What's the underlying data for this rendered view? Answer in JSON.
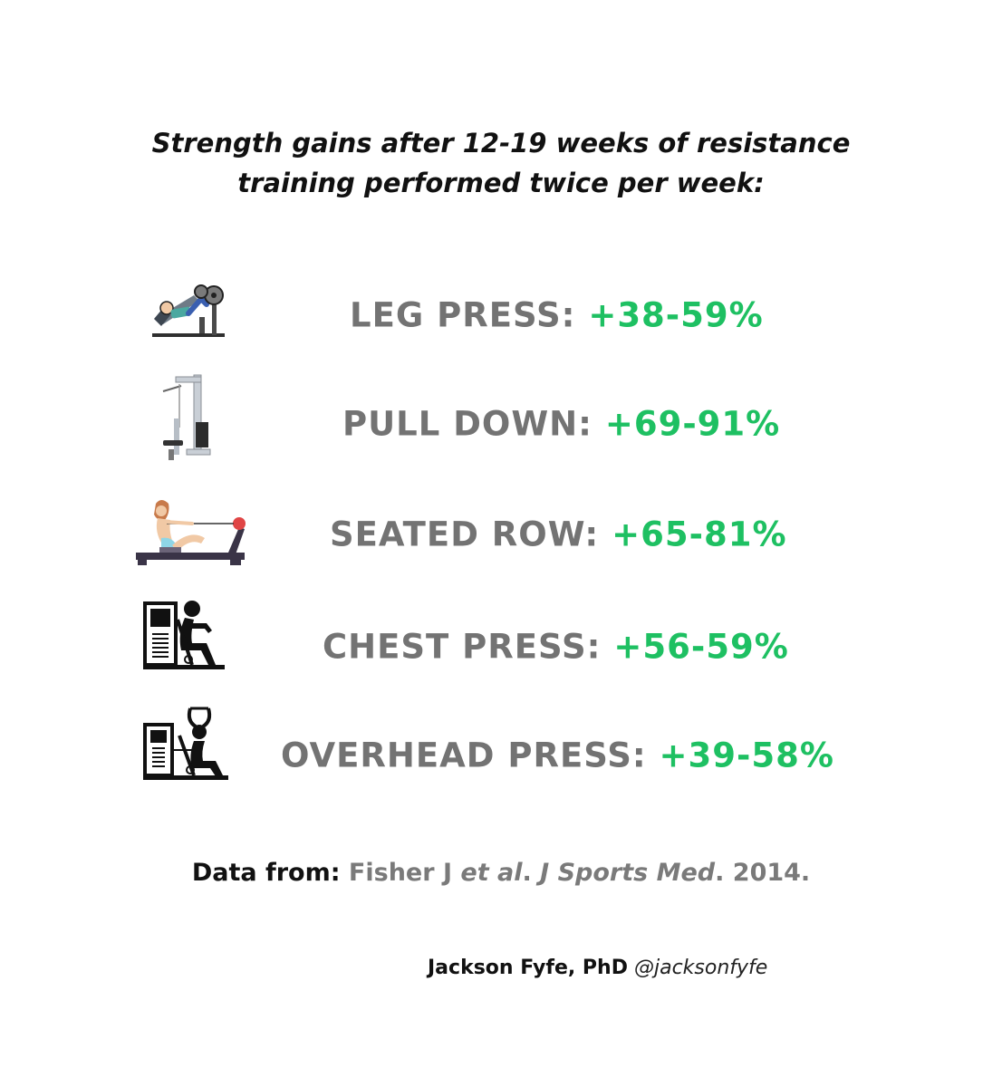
{
  "title": {
    "line1": "Strength gains after 12-19 weeks of resistance",
    "line2": "training performed twice per week:"
  },
  "exercises": [
    {
      "name": "LEG PRESS:",
      "value": "+38-59%",
      "icon": "leg-press-machine-icon"
    },
    {
      "name": "PULL DOWN:",
      "value": "+69-91%",
      "icon": "lat-pulldown-machine-icon"
    },
    {
      "name": "SEATED ROW:",
      "value": "+65-81%",
      "icon": "rowing-machine-icon"
    },
    {
      "name": "CHEST PRESS:",
      "value": "+56-59%",
      "icon": "chest-press-machine-icon"
    },
    {
      "name": "OVERHEAD PRESS:",
      "value": "+39-58%",
      "icon": "overhead-press-machine-icon"
    }
  ],
  "source": {
    "lead": "Data from:",
    "author": "Fisher J ",
    "etal": "et al",
    "sep1": ". ",
    "journal": "J Sports Med",
    "year": ". 2014."
  },
  "credit": {
    "name": "Jackson Fyfe, PhD",
    "handle": "@jacksonfyfe"
  },
  "colors": {
    "label_gray": "#737373",
    "value_green": "#1ec062"
  }
}
